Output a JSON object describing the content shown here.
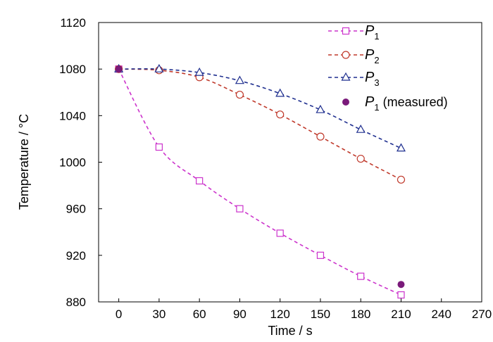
{
  "chart_data": {
    "type": "line",
    "xlabel": "Time / s",
    "ylabel": "Temperature / °C",
    "xlim": [
      -15,
      270
    ],
    "ylim": [
      880,
      1120
    ],
    "x_ticks": [
      0,
      30,
      60,
      90,
      120,
      150,
      180,
      210,
      240,
      270
    ],
    "y_ticks": [
      880,
      920,
      960,
      1000,
      1040,
      1080,
      1120
    ],
    "grid": false,
    "legend_position": "top-right",
    "x": [
      0,
      30,
      60,
      90,
      120,
      150,
      180,
      210
    ],
    "series": [
      {
        "name_main": "P",
        "name_sub": "1",
        "name_suffix": "",
        "marker": "square",
        "line": "dashed",
        "color": "#cc33cc",
        "values": [
          1080,
          1013,
          984,
          960,
          939,
          920,
          902,
          886
        ]
      },
      {
        "name_main": "P",
        "name_sub": "2",
        "name_suffix": "",
        "marker": "circle",
        "line": "dashed",
        "color": "#c0392b",
        "values": [
          1080,
          1079,
          1073,
          1058,
          1041,
          1022,
          1003,
          985
        ]
      },
      {
        "name_main": "P",
        "name_sub": "3",
        "name_suffix": "",
        "marker": "triangle",
        "line": "dashed",
        "color": "#1f2f8f",
        "values": [
          1080,
          1080,
          1077,
          1070,
          1059,
          1045,
          1028,
          1012
        ]
      },
      {
        "name_main": "P",
        "name_sub": "1",
        "name_suffix": " (measured)",
        "marker": "filled-circle",
        "line": "none",
        "color": "#7a1a7a",
        "points": [
          [
            0,
            1080
          ],
          [
            210,
            895
          ]
        ]
      }
    ]
  }
}
